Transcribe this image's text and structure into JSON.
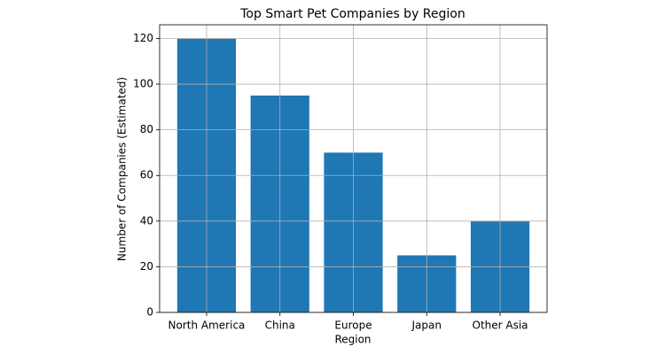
{
  "chart_data": {
    "type": "bar",
    "title": "Top Smart Pet Companies by Region",
    "x_label": "Region",
    "y_label": "Number of Companies (Estimated)",
    "categories": [
      "North America",
      "China",
      "Europe",
      "Japan",
      "Other Asia"
    ],
    "values": [
      120,
      95,
      70,
      25,
      40
    ],
    "color": "#1f77b4",
    "ylim": [
      0,
      126
    ],
    "yticks": [
      0,
      20,
      40,
      60,
      80,
      100,
      120
    ],
    "grid": true
  }
}
